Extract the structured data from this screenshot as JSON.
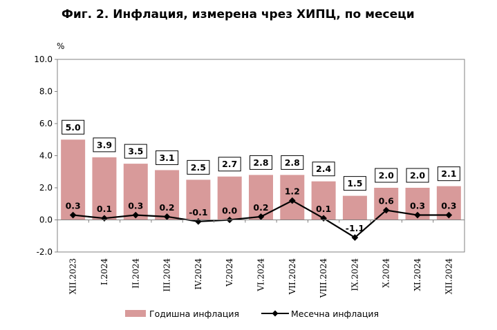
{
  "title": "Фиг. 2. Инфлация, измерена чрез ХИПЦ, по месеци",
  "chart_data": {
    "type": "bar",
    "ylabel": "%",
    "ylim": [
      -2.0,
      10.0
    ],
    "yticks": [
      "10.0",
      "8.0",
      "6.0",
      "4.0",
      "2.0",
      "0.0",
      "-2.0"
    ],
    "categories": [
      "XII.2023",
      "I.2024",
      "II.2024",
      "III.2024",
      "IV.2024",
      "V.2024",
      "VI.2024",
      "VII.2024",
      "VIII.2024",
      "IX.2024",
      "X.2024",
      "XI.2024",
      "XII.2024"
    ],
    "series": [
      {
        "name": "Годишна инфлация",
        "kind": "bar",
        "color": "#d89a9a",
        "values": [
          5.0,
          3.9,
          3.5,
          3.1,
          2.5,
          2.7,
          2.8,
          2.8,
          2.4,
          1.5,
          2.0,
          2.0,
          2.1
        ],
        "labels": [
          "5.0",
          "3.9",
          "3.5",
          "3.1",
          "2.5",
          "2.7",
          "2.8",
          "2.8",
          "2.4",
          "1.5",
          "2.0",
          "2.0",
          "2.1"
        ]
      },
      {
        "name": "Месечна инфлация",
        "kind": "line",
        "color": "#000000",
        "values": [
          0.3,
          0.1,
          0.3,
          0.2,
          -0.1,
          0.0,
          0.2,
          1.2,
          0.1,
          -1.1,
          0.6,
          0.3,
          0.3
        ],
        "labels": [
          "0.3",
          "0.1",
          "0.3",
          "0.2",
          "-0.1",
          "0.0",
          "0.2",
          "1.2",
          "0.1",
          "-1.1",
          "0.6",
          "0.3",
          "0.3"
        ]
      }
    ],
    "legend": "bottom"
  }
}
